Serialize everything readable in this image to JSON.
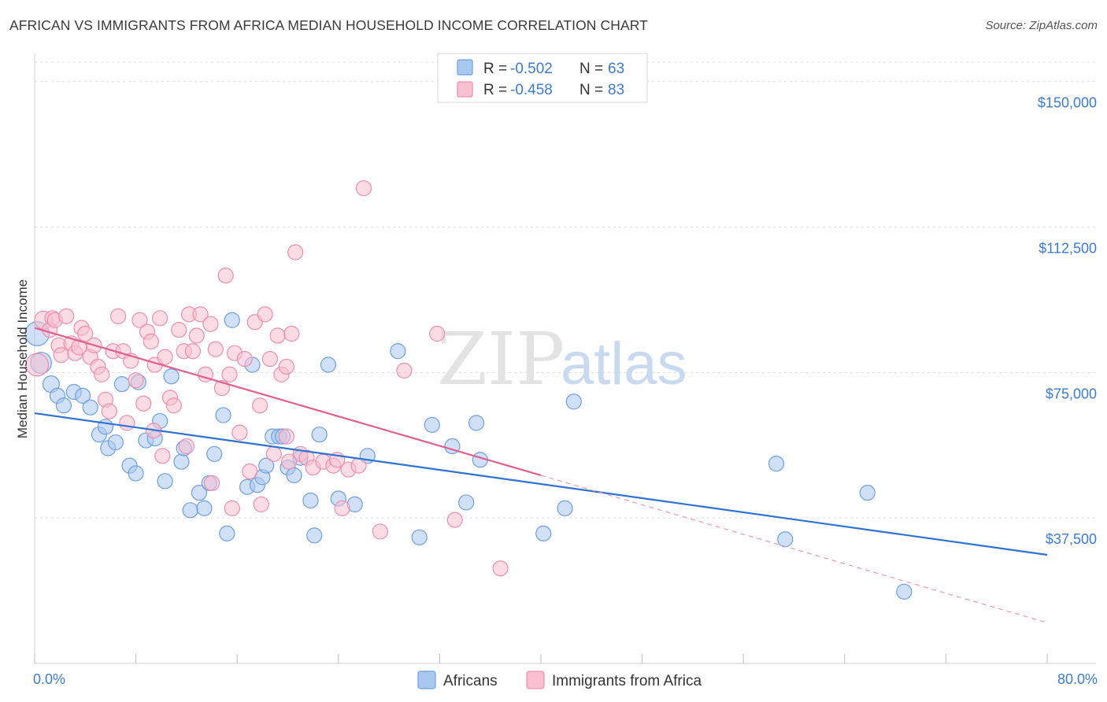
{
  "header": {
    "title": "AFRICAN VS IMMIGRANTS FROM AFRICA MEDIAN HOUSEHOLD INCOME CORRELATION CHART",
    "source": "Source: ZipAtlas.com"
  },
  "watermark": {
    "zip": "ZIP",
    "atlas": "atlas"
  },
  "legend_top": {
    "rows": [
      {
        "r_label": "R = ",
        "r_value": "-0.502",
        "n_label": "N = ",
        "n_value": "63",
        "color": "#a9c8f0",
        "stroke": "#6f9fde"
      },
      {
        "r_label": "R = ",
        "r_value": "-0.458",
        "n_label": "N = ",
        "n_value": "83",
        "color": "#f8bfd0",
        "stroke": "#ec8fae"
      }
    ]
  },
  "legend_bottom": {
    "items": [
      {
        "label": "Africans",
        "color": "#a9c8f0",
        "stroke": "#6f9fde"
      },
      {
        "label": "Immigrants from Africa",
        "color": "#f8bfd0",
        "stroke": "#ec8fae"
      }
    ]
  },
  "chart_data": {
    "type": "scatter",
    "title": "AFRICAN VS IMMIGRANTS FROM AFRICA MEDIAN HOUSEHOLD INCOME CORRELATION CHART",
    "xlabel": "",
    "ylabel": "Median Household Income",
    "xlim": [
      0,
      80
    ],
    "ylim": [
      0,
      155000
    ],
    "x_tick_labels": [
      "0.0%",
      "80.0%"
    ],
    "y_ticks": [
      37500,
      75000,
      112500,
      150000
    ],
    "y_tick_labels": [
      "$37,500",
      "$75,000",
      "$112,500",
      "$150,000"
    ],
    "grid": "horizontal-dashed",
    "legend": "top-center",
    "series": [
      {
        "name": "Africans",
        "color": "#6f9fde",
        "fill": "#a9c8f0",
        "trend": {
          "x": [
            0,
            80
          ],
          "y": [
            64500,
            28000
          ],
          "style": "solid",
          "color": "#2f72d4"
        },
        "points": [
          [
            0.2,
            85000,
            1.6
          ],
          [
            0.5,
            77500,
            1.4
          ],
          [
            1.3,
            72000,
            1.1
          ],
          [
            1.8,
            69000,
            1
          ],
          [
            2.3,
            66500,
            1
          ],
          [
            3.1,
            70000,
            1
          ],
          [
            3.8,
            69000,
            1
          ],
          [
            4.4,
            66000,
            1
          ],
          [
            5.1,
            59000,
            1
          ],
          [
            5.6,
            61000,
            1
          ],
          [
            5.8,
            55500,
            1
          ],
          [
            6.4,
            57000,
            1
          ],
          [
            6.9,
            72000,
            1
          ],
          [
            7.5,
            51000,
            1
          ],
          [
            8.0,
            49000,
            1
          ],
          [
            8.2,
            72500,
            1
          ],
          [
            8.8,
            57500,
            1
          ],
          [
            9.5,
            58000,
            1
          ],
          [
            9.9,
            62500,
            1
          ],
          [
            10.3,
            47000,
            1
          ],
          [
            10.8,
            74000,
            1
          ],
          [
            11.6,
            52000,
            1
          ],
          [
            11.8,
            55500,
            1
          ],
          [
            12.3,
            39500,
            1
          ],
          [
            13.0,
            44000,
            1
          ],
          [
            13.4,
            40000,
            1
          ],
          [
            13.8,
            46500,
            1
          ],
          [
            14.2,
            54000,
            1
          ],
          [
            14.9,
            64000,
            1
          ],
          [
            15.2,
            33500,
            1
          ],
          [
            15.6,
            88500,
            1
          ],
          [
            16.8,
            45500,
            1
          ],
          [
            17.2,
            77000,
            1
          ],
          [
            17.6,
            46000,
            1
          ],
          [
            18.0,
            48000,
            1
          ],
          [
            18.3,
            51000,
            1
          ],
          [
            18.8,
            58500,
            1
          ],
          [
            19.3,
            58500,
            1
          ],
          [
            19.6,
            58500,
            1
          ],
          [
            20.0,
            50500,
            1
          ],
          [
            20.5,
            48500,
            1
          ],
          [
            21.0,
            53000,
            1
          ],
          [
            21.8,
            42000,
            1
          ],
          [
            22.1,
            33000,
            1
          ],
          [
            22.5,
            59000,
            1
          ],
          [
            23.2,
            77000,
            1
          ],
          [
            24.0,
            42500,
            1
          ],
          [
            25.3,
            41000,
            1
          ],
          [
            26.3,
            53500,
            1
          ],
          [
            28.7,
            80500,
            1
          ],
          [
            30.4,
            32500,
            1
          ],
          [
            31.4,
            61500,
            1
          ],
          [
            33.0,
            56000,
            1
          ],
          [
            34.1,
            41500,
            1
          ],
          [
            34.9,
            62000,
            1
          ],
          [
            35.2,
            52500,
            1
          ],
          [
            40.2,
            33500,
            1
          ],
          [
            41.9,
            40000,
            1
          ],
          [
            42.6,
            67500,
            1
          ],
          [
            58.6,
            51500,
            1
          ],
          [
            59.3,
            32000,
            1
          ],
          [
            65.8,
            44000,
            1
          ],
          [
            68.7,
            18500,
            1
          ]
        ]
      },
      {
        "name": "Immigrants from Africa",
        "color": "#ec8fae",
        "fill": "#f8bfd0",
        "trend": {
          "x": [
            0,
            40
          ],
          "y": [
            86500,
            48500
          ],
          "style": "solid",
          "color": "#e0608f"
        },
        "trend_extension": {
          "x": [
            40,
            80
          ],
          "y": [
            48500,
            10500
          ],
          "style": "dashed",
          "color": "#eb9ab6"
        },
        "points": [
          [
            0.2,
            77000,
            1.5
          ],
          [
            0.7,
            88500,
            1.2
          ],
          [
            1.2,
            86000,
            1
          ],
          [
            1.4,
            89000,
            1
          ],
          [
            1.6,
            88500,
            1
          ],
          [
            1.9,
            82000,
            1
          ],
          [
            2.1,
            79500,
            1
          ],
          [
            2.5,
            89500,
            1
          ],
          [
            2.9,
            82500,
            1
          ],
          [
            3.2,
            80000,
            1
          ],
          [
            3.5,
            81500,
            1
          ],
          [
            3.7,
            86500,
            1
          ],
          [
            4.0,
            85000,
            1
          ],
          [
            4.4,
            79000,
            1
          ],
          [
            4.7,
            82000,
            1
          ],
          [
            5.0,
            76500,
            1
          ],
          [
            5.3,
            74500,
            1
          ],
          [
            5.6,
            68000,
            1
          ],
          [
            5.9,
            65000,
            1
          ],
          [
            6.2,
            80500,
            1
          ],
          [
            6.6,
            89500,
            1
          ],
          [
            7.0,
            80500,
            1
          ],
          [
            7.3,
            62000,
            1
          ],
          [
            7.6,
            78000,
            1
          ],
          [
            8.0,
            73000,
            1
          ],
          [
            8.3,
            88500,
            1
          ],
          [
            8.6,
            67000,
            1
          ],
          [
            8.9,
            85500,
            1
          ],
          [
            9.2,
            83000,
            1
          ],
          [
            9.5,
            77000,
            1
          ],
          [
            9.9,
            89000,
            1
          ],
          [
            10.3,
            79000,
            1
          ],
          [
            10.7,
            68500,
            1
          ],
          [
            11.0,
            66500,
            1
          ],
          [
            11.4,
            86000,
            1
          ],
          [
            11.8,
            80500,
            1
          ],
          [
            12.2,
            90000,
            1
          ],
          [
            12.5,
            80500,
            1
          ],
          [
            12.8,
            84500,
            1
          ],
          [
            13.1,
            90000,
            1
          ],
          [
            13.5,
            74500,
            1
          ],
          [
            13.9,
            87500,
            1
          ],
          [
            14.3,
            81000,
            1
          ],
          [
            14.8,
            71000,
            1
          ],
          [
            15.1,
            100000,
            1
          ],
          [
            15.4,
            74500,
            1
          ],
          [
            15.8,
            80000,
            1
          ],
          [
            16.2,
            59500,
            1
          ],
          [
            16.6,
            78500,
            1
          ],
          [
            17.0,
            49500,
            1
          ],
          [
            17.4,
            88000,
            1
          ],
          [
            17.8,
            66500,
            1
          ],
          [
            18.2,
            90000,
            1
          ],
          [
            18.6,
            78500,
            1
          ],
          [
            18.9,
            54000,
            1
          ],
          [
            19.2,
            84500,
            1
          ],
          [
            19.5,
            74500,
            1
          ],
          [
            19.9,
            76500,
            1
          ],
          [
            20.3,
            85000,
            1
          ],
          [
            20.6,
            106000,
            1
          ],
          [
            21.0,
            54000,
            1
          ],
          [
            21.5,
            53000,
            1
          ],
          [
            22.0,
            50500,
            1
          ],
          [
            22.8,
            52000,
            1
          ],
          [
            23.6,
            51000,
            1
          ],
          [
            24.3,
            40000,
            1
          ],
          [
            24.8,
            50000,
            1
          ],
          [
            25.6,
            51000,
            1
          ],
          [
            26.0,
            122500,
            1
          ],
          [
            27.3,
            34000,
            1
          ],
          [
            29.2,
            75500,
            1
          ],
          [
            31.8,
            85000,
            1
          ],
          [
            33.2,
            37000,
            1
          ],
          [
            36.8,
            24500,
            1
          ],
          [
            10.1,
            53500,
            1
          ],
          [
            14.0,
            46500,
            1
          ],
          [
            15.6,
            40000,
            1
          ],
          [
            17.9,
            41000,
            1
          ],
          [
            9.4,
            60000,
            1
          ],
          [
            12.0,
            56000,
            1
          ],
          [
            20.1,
            52000,
            1
          ],
          [
            23.9,
            52500,
            1
          ],
          [
            19.9,
            58500,
            1
          ]
        ]
      }
    ]
  }
}
